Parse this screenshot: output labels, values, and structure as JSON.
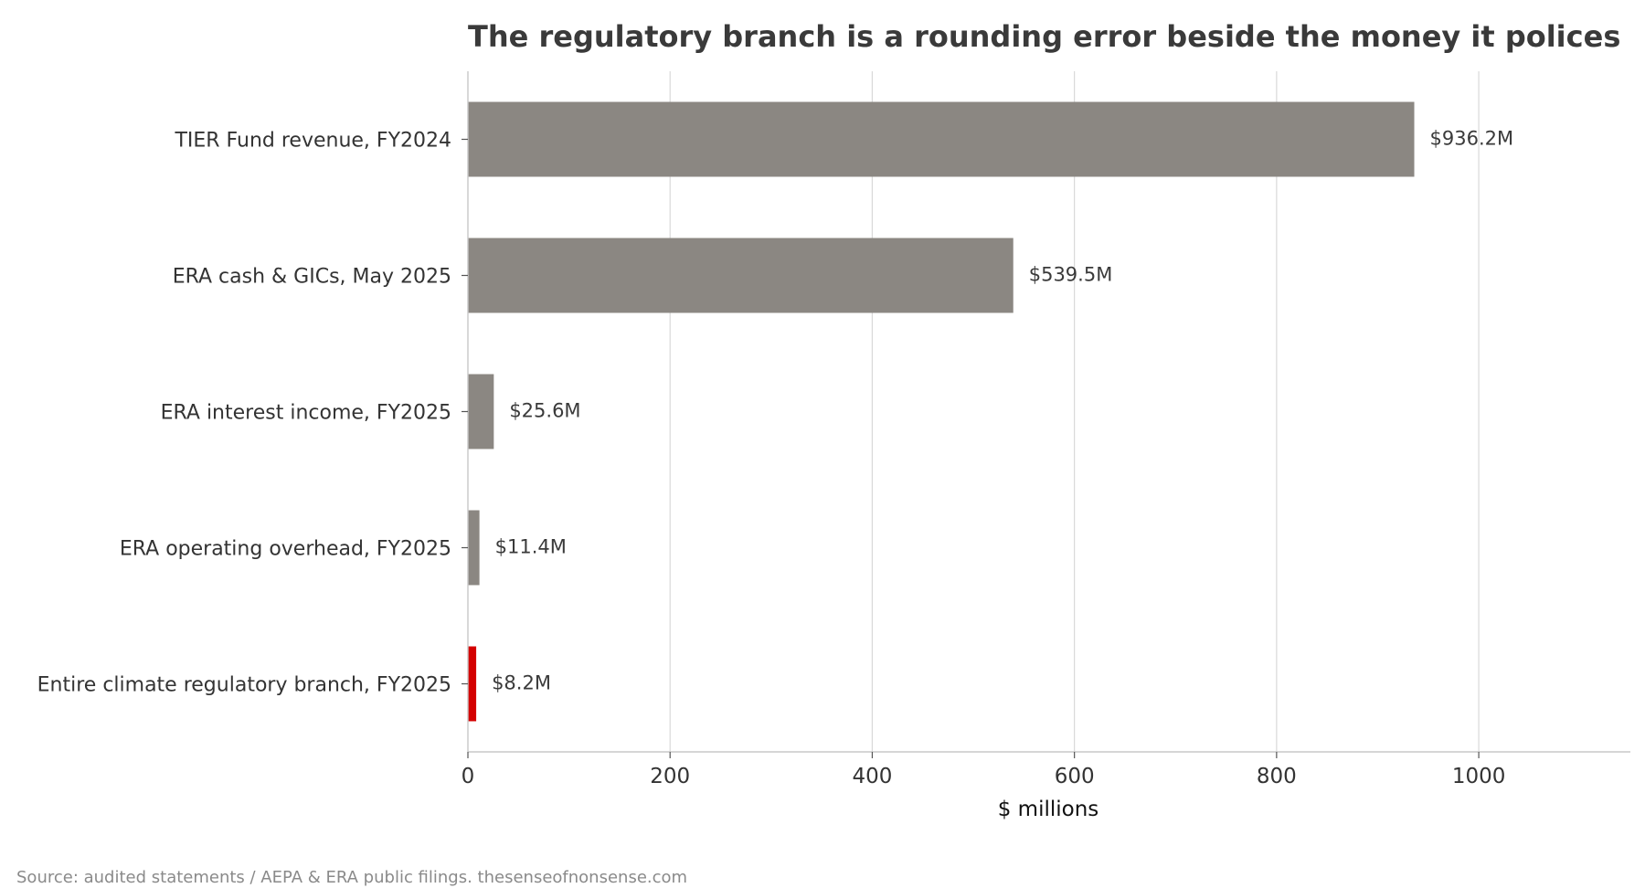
{
  "chart_data": {
    "type": "bar",
    "orientation": "horizontal",
    "title": "The regulatory branch is a rounding error beside the money it polices",
    "xlabel": "$ millions",
    "ylabel": "",
    "xlim": [
      0,
      1150
    ],
    "xticks": [
      0,
      200,
      400,
      600,
      800,
      1000
    ],
    "grid": "vertical",
    "categories": [
      "TIER Fund revenue, FY2024",
      "ERA cash & GICs, May 2025",
      "ERA interest income, FY2025",
      "ERA operating overhead, FY2025",
      "Entire climate regulatory branch, FY2025"
    ],
    "values": [
      936.2,
      539.5,
      25.6,
      11.4,
      8.2
    ],
    "value_labels": [
      "$936.2M",
      "$539.5M",
      "$25.6M",
      "$11.4M",
      "$8.2M"
    ],
    "colors": [
      "#8b8782",
      "#8b8782",
      "#8b8782",
      "#8b8782",
      "#d40000"
    ],
    "source": "Source: audited statements / AEPA & ERA public filings. thesenseofnonsense.com"
  }
}
